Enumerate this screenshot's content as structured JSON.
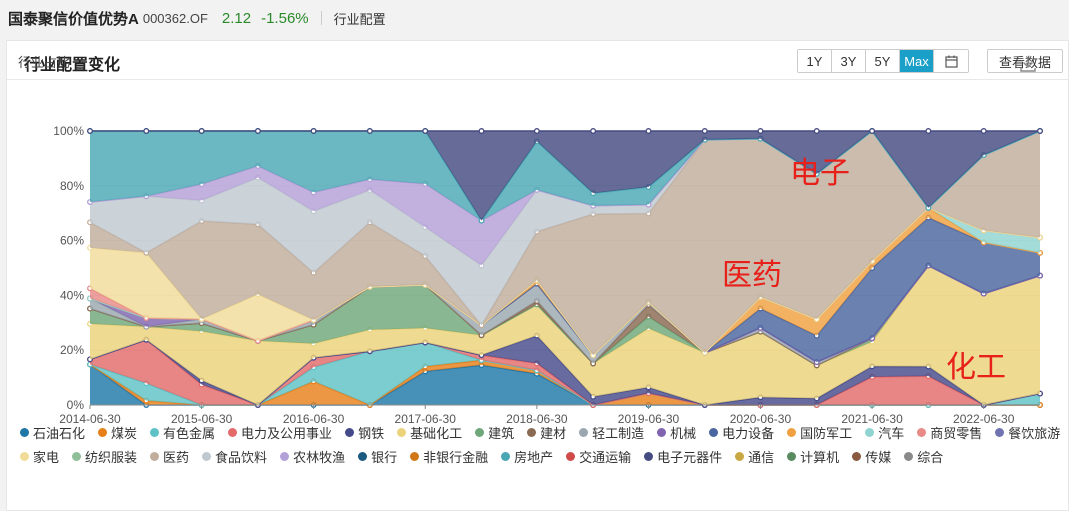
{
  "header": {
    "fund_name": "国泰聚信价值优势A",
    "fund_code": "000362.OF",
    "nav": "2.12",
    "change": "-1.56%",
    "section": "行业配置"
  },
  "card": {
    "title": "行业配置变化",
    "ranges": [
      "1Y",
      "3Y",
      "5Y",
      "Max"
    ],
    "active_range": "Max",
    "view_data_label": "查看数据",
    "y_axis_title": "行业占比"
  },
  "annotations": [
    "电子",
    "医药",
    "化工"
  ],
  "colors": {
    "active": "#1aa0c8",
    "up": "#2a8a2a",
    "annotation": "#e8201a"
  },
  "chart_data": {
    "type": "area",
    "stacked": true,
    "normalized": true,
    "x": [
      "2014-06-30",
      "2014-12-31",
      "2015-06-30",
      "2015-12-31",
      "2016-06-30",
      "2016-12-31",
      "2017-06-30",
      "2017-12-31",
      "2018-06-30",
      "2018-12-31",
      "2019-06-30",
      "2019-12-31",
      "2020-06-30",
      "2020-12-31",
      "2021-06-30",
      "2021-12-31",
      "2022-06-30",
      "2022-12-31"
    ],
    "x_tick_labels": [
      "2014-06-30",
      "2015-06-30",
      "2016-06-30",
      "2017-06-30",
      "2018-06-30",
      "2019-06-30",
      "2020-06-30",
      "2021-06-30",
      "2022-06-30"
    ],
    "y_ticks": [
      "0%",
      "20%",
      "40%",
      "60%",
      "80%",
      "100%"
    ],
    "ylim": [
      0,
      100
    ],
    "grid": true,
    "legend_position": "bottom",
    "series": [
      {
        "name": "石油石化",
        "color": "#1f77a8",
        "values": [
          8,
          0,
          0,
          0,
          0,
          0,
          7,
          8,
          9,
          0,
          0,
          0,
          0,
          0,
          0,
          0,
          0,
          0
        ]
      },
      {
        "name": "煤炭",
        "color": "#e8801a",
        "values": [
          0,
          1,
          0,
          0,
          5,
          0,
          1,
          1,
          1,
          0,
          4,
          0,
          0,
          0,
          0,
          0,
          0,
          0
        ]
      },
      {
        "name": "有色金属",
        "color": "#5ec2c6",
        "values": [
          0,
          4,
          0,
          0,
          3,
          10,
          5,
          0,
          0,
          0,
          0,
          0,
          0,
          0,
          0,
          0,
          0,
          3
        ]
      },
      {
        "name": "电力及公用事业",
        "color": "#e36a6a",
        "values": [
          1,
          10,
          5,
          0,
          2,
          0,
          0,
          1,
          2,
          0,
          0,
          0,
          0,
          0,
          8,
          6,
          0,
          0
        ]
      },
      {
        "name": "钢铁",
        "color": "#454a8a",
        "values": [
          0,
          0,
          1,
          0,
          0,
          0,
          0,
          0,
          8,
          2,
          2,
          0,
          2,
          2,
          3,
          2,
          0,
          0
        ]
      },
      {
        "name": "基础化工",
        "color": "#ecd27a",
        "values": [
          7,
          3,
          12,
          11,
          3,
          4,
          3,
          4,
          9,
          8,
          20,
          12,
          17,
          10,
          7,
          21,
          37,
          31
        ]
      },
      {
        "name": "建筑",
        "color": "#6fa77a",
        "values": [
          3,
          0,
          2,
          0,
          4,
          8,
          9,
          0,
          0,
          0,
          4,
          0,
          0,
          0,
          1,
          0,
          0,
          0
        ]
      },
      {
        "name": "建材",
        "color": "#8a6a52",
        "values": [
          0,
          0,
          0,
          0,
          0,
          0,
          0,
          0,
          1,
          0,
          4,
          0,
          0,
          0,
          0,
          0,
          0,
          0
        ]
      },
      {
        "name": "轻工制造",
        "color": "#9aa7b0",
        "values": [
          2,
          0,
          1,
          0,
          1,
          0,
          0,
          2,
          5,
          2,
          1,
          0,
          1,
          1,
          0,
          0,
          0,
          0
        ]
      },
      {
        "name": "机械",
        "color": "#8064b0",
        "values": [
          0,
          2,
          0,
          0,
          0,
          0,
          0,
          0,
          0,
          0,
          0,
          0,
          0,
          0,
          0,
          0,
          0,
          0
        ]
      },
      {
        "name": "电力设备",
        "color": "#4a66a0",
        "values": [
          0,
          0,
          0,
          0,
          0,
          0,
          0,
          0,
          0,
          0,
          0,
          0,
          5,
          8,
          20,
          10,
          17,
          6
        ]
      },
      {
        "name": "国防军工",
        "color": "#f0a040",
        "values": [
          0,
          0,
          0,
          0,
          0,
          0,
          0,
          0,
          1,
          0,
          0,
          0,
          3,
          5,
          2,
          2,
          0,
          0
        ]
      },
      {
        "name": "汽车",
        "color": "#8fd4d0",
        "values": [
          0,
          0,
          0,
          0,
          0,
          0,
          0,
          0,
          0,
          0,
          0,
          0,
          0,
          0,
          0,
          0,
          4,
          4
        ]
      },
      {
        "name": "商贸零售",
        "color": "#e88a88",
        "values": [
          2,
          0,
          0,
          0,
          0,
          0,
          0,
          0,
          0,
          0,
          0,
          0,
          0,
          0,
          0,
          0,
          0,
          0
        ]
      },
      {
        "name": "餐饮旅游",
        "color": "#6f73b0",
        "values": [
          0,
          0,
          0,
          0,
          0,
          0,
          0,
          0,
          0,
          0,
          0,
          0,
          0,
          0,
          0,
          0,
          0,
          0
        ]
      },
      {
        "name": "家电",
        "color": "#f0dc98",
        "values": [
          8,
          15,
          0,
          8,
          0,
          0,
          0,
          0,
          0,
          0,
          0,
          0,
          0,
          0,
          0,
          0,
          0,
          0
        ]
      },
      {
        "name": "纺织服装",
        "color": "#8fbf98",
        "values": [
          0,
          0,
          0,
          0,
          0,
          0,
          0,
          0,
          0,
          0,
          0,
          0,
          0,
          0,
          0,
          0,
          0,
          0
        ]
      },
      {
        "name": "医药",
        "color": "#c0ad9c",
        "values": [
          5,
          0,
          24,
          12,
          10,
          12,
          6,
          0,
          14,
          34,
          30,
          49,
          41,
          44,
          37,
          0,
          25,
          28
        ]
      },
      {
        "name": "食品饮料",
        "color": "#c0c8d0",
        "values": [
          4,
          13,
          5,
          8,
          13,
          6,
          6,
          12,
          12,
          2,
          3,
          0,
          0,
          0,
          0,
          0,
          0,
          0
        ]
      },
      {
        "name": "农林牧渔",
        "color": "#b4a0d8",
        "values": [
          0,
          0,
          4,
          2,
          4,
          2,
          9,
          9,
          0,
          0,
          0,
          0,
          0,
          0,
          0,
          0,
          0,
          0
        ]
      },
      {
        "name": "银行",
        "color": "#1a5a80",
        "values": [
          0,
          0,
          0,
          0,
          0,
          0,
          0,
          0,
          0,
          0,
          0,
          0,
          0,
          0,
          0,
          0,
          0,
          0
        ]
      },
      {
        "name": "非银行金融",
        "color": "#d07818",
        "values": [
          0,
          0,
          0,
          0,
          0,
          0,
          0,
          0,
          0,
          0,
          0,
          0,
          0,
          0,
          0,
          0,
          0,
          0
        ]
      },
      {
        "name": "房地产",
        "color": "#4aa8b4",
        "values": [
          14,
          15,
          13,
          6,
          13,
          9,
          11,
          0,
          14,
          3,
          6,
          0,
          0,
          0,
          0,
          0,
          0,
          0
        ]
      },
      {
        "name": "交通运输",
        "color": "#d04a4a",
        "values": [
          0,
          0,
          0,
          0,
          0,
          0,
          0,
          0,
          0,
          0,
          0,
          0,
          0,
          0,
          0,
          0,
          0,
          0
        ]
      },
      {
        "name": "电子元器件",
        "color": "#444b80",
        "values": [
          0,
          0,
          0,
          0,
          0,
          0,
          0,
          18,
          3,
          15,
          19,
          2,
          2,
          13,
          0,
          16,
          8,
          0
        ]
      },
      {
        "name": "通信",
        "color": "#c8a840",
        "values": [
          0,
          0,
          0,
          0,
          0,
          0,
          0,
          0,
          0,
          0,
          0,
          0,
          0,
          0,
          0,
          0,
          0,
          0
        ]
      },
      {
        "name": "计算机",
        "color": "#5a8a60",
        "values": [
          0,
          0,
          0,
          0,
          0,
          0,
          0,
          0,
          0,
          0,
          0,
          0,
          0,
          0,
          0,
          0,
          0,
          0
        ]
      },
      {
        "name": "传媒",
        "color": "#8a5a40",
        "values": [
          0,
          0,
          0,
          0,
          0,
          0,
          0,
          0,
          0,
          0,
          0,
          0,
          0,
          0,
          0,
          0,
          0,
          0
        ]
      },
      {
        "name": "综合",
        "color": "#8a8a8a",
        "values": [
          0,
          0,
          0,
          0,
          0,
          0,
          0,
          0,
          0,
          0,
          0,
          0,
          0,
          0,
          0,
          0,
          0,
          0
        ]
      }
    ]
  }
}
